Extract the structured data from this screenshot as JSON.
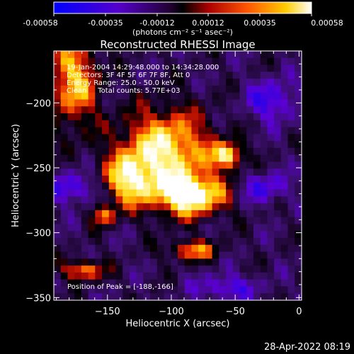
{
  "colorbar": {
    "ticks": [
      "-0.00058",
      "-0.00035",
      "-0.00012",
      "0.00012",
      "0.00035",
      "0.00058"
    ],
    "unit_label": "(photons cm⁻² s⁻¹ asec⁻²)",
    "range": [
      -0.00058,
      0.00058
    ]
  },
  "chart_data": {
    "type": "heatmap",
    "title": "Reconstructed RHESSI Image",
    "xlabel": "Heliocentric X (arcsec)",
    "ylabel": "Heliocentric Y (arcsec)",
    "xlim": [
      -192,
      2
    ],
    "ylim": [
      -352,
      -160
    ],
    "x_ticks": [
      -150,
      -100,
      -50,
      0
    ],
    "y_ticks": [
      -200,
      -250,
      -300,
      -350
    ],
    "annotations": [
      "19-Jan-2004 14:29:48.000 to 14:34:28.000",
      "Detectors: 3F 4F 5F 6F 7F 8F, Att 0",
      "Energy Range: 25.0 - 50.0 keV",
      "Clean     Total counts: 5.77E+03"
    ],
    "peak_label": "Position of Peak = [-188,-166]",
    "peak_position": [
      -188,
      -166
    ],
    "colormap": "blue-purple-black-red-orange-yellow-white",
    "value_range": [
      -0.00058,
      0.00058
    ]
  },
  "footer": {
    "timestamp": "28-Apr-2022 08:19"
  }
}
